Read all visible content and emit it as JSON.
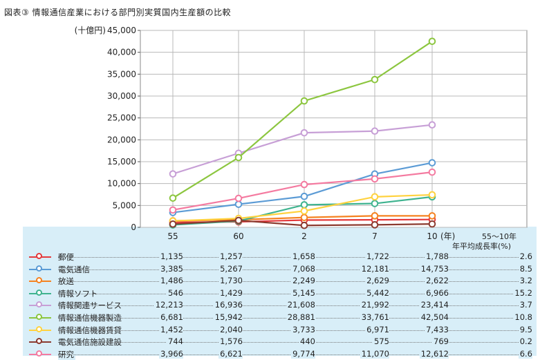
{
  "title": "図表③ 情報通信産業における部門別実質国内生産額の比較",
  "chart_data": {
    "type": "line",
    "ylabel": "(十億円)",
    "ylim": [
      0,
      45000
    ],
    "yticks": [
      "0",
      "5,000",
      "10,000",
      "15,000",
      "20,000",
      "25,000",
      "30,000",
      "35,000",
      "40,000",
      "45,000"
    ],
    "categories": [
      "55",
      "60",
      "2",
      "7",
      "10"
    ],
    "xunit": "(年)",
    "grid": true,
    "series": [
      {
        "name": "郵便",
        "color": "#e4393c",
        "values": [
          1135,
          1257,
          1658,
          1722,
          1788
        ]
      },
      {
        "name": "電気通信",
        "color": "#5b9bd5",
        "values": [
          3385,
          5267,
          7068,
          12181,
          14753
        ]
      },
      {
        "name": "放送",
        "color": "#f58220",
        "values": [
          1486,
          1730,
          2249,
          2629,
          2622
        ]
      },
      {
        "name": "情報ソフト",
        "color": "#3fb38f",
        "values": [
          546,
          1429,
          5145,
          5442,
          6966
        ]
      },
      {
        "name": "情報関連サービス",
        "color": "#c79fd6",
        "values": [
          12213,
          16936,
          21608,
          21992,
          23414
        ]
      },
      {
        "name": "情報通信機器製造",
        "color": "#8cc63f",
        "values": [
          6681,
          15942,
          28881,
          33761,
          42504
        ]
      },
      {
        "name": "情報通信機器賃貸",
        "color": "#ffd23f",
        "values": [
          1452,
          2040,
          3733,
          6971,
          7433
        ]
      },
      {
        "name": "電気通信施設建設",
        "color": "#8b3a2f",
        "values": [
          744,
          1576,
          440,
          575,
          769
        ]
      },
      {
        "name": "研究",
        "color": "#f47aa0",
        "values": [
          3966,
          6621,
          9774,
          11070,
          12612
        ]
      }
    ]
  },
  "table": {
    "header_line1": "55〜10年",
    "header_line2": "年平均成長率(%)",
    "columns": [
      "55",
      "60",
      "2",
      "7",
      "10"
    ],
    "rows": [
      {
        "label": "郵便",
        "cells": [
          "1,135",
          "1,257",
          "1,658",
          "1,722",
          "1,788"
        ],
        "rate": "2.6"
      },
      {
        "label": "電気通信",
        "cells": [
          "3,385",
          "5,267",
          "7,068",
          "12,181",
          "14,753"
        ],
        "rate": "8.5"
      },
      {
        "label": "放送",
        "cells": [
          "1,486",
          "1,730",
          "2,249",
          "2,629",
          "2,622"
        ],
        "rate": "3.2"
      },
      {
        "label": "情報ソフト",
        "cells": [
          "546",
          "1,429",
          "5,145",
          "5,442",
          "6,966"
        ],
        "rate": "15.2"
      },
      {
        "label": "情報関連サービス",
        "cells": [
          "12,213",
          "16,936",
          "21,608",
          "21,992",
          "23,414"
        ],
        "rate": "3.7"
      },
      {
        "label": "情報通信機器製造",
        "cells": [
          "6,681",
          "15,942",
          "28,881",
          "33,761",
          "42,504"
        ],
        "rate": "10.8"
      },
      {
        "label": "情報通信機器賃貸",
        "cells": [
          "1,452",
          "2,040",
          "3,733",
          "6,971",
          "7,433"
        ],
        "rate": "9.5"
      },
      {
        "label": "電気通信施設建設",
        "cells": [
          "744",
          "1,576",
          "440",
          "575",
          "769"
        ],
        "rate": "0.2"
      },
      {
        "label": "研究",
        "cells": [
          "3,966",
          "6,621",
          "9,774",
          "11,070",
          "12,612"
        ],
        "rate": "6.6"
      }
    ]
  }
}
